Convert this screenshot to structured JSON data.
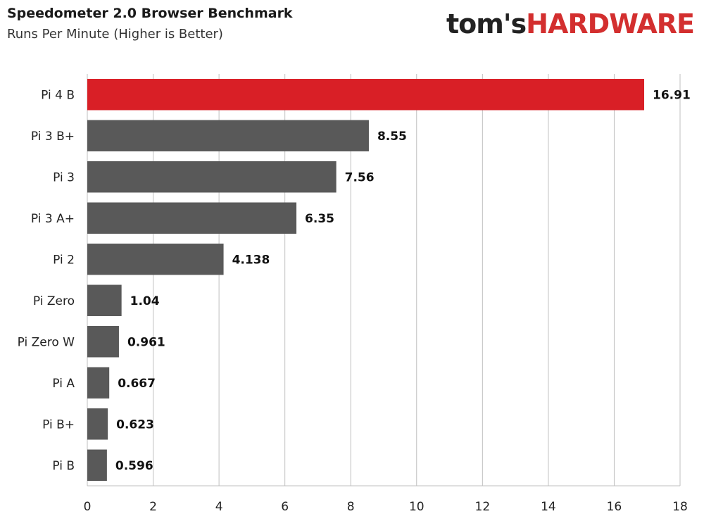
{
  "header": {
    "title": "Speedometer 2.0 Browser Benchmark",
    "subtitle": "Runs Per Minute  (Higher is Better)",
    "logo_text_1": "tom's",
    "logo_text_2": "HARDWARE"
  },
  "colors": {
    "highlight": "#d91f26",
    "bar": "#595959",
    "grid": "#bfbfbf",
    "logo_accent": "#d32f2f"
  },
  "chart_data": {
    "type": "bar",
    "orientation": "horizontal",
    "title": "Speedometer 2.0 Browser Benchmark",
    "subtitle": "Runs Per Minute  (Higher is Better)",
    "categories": [
      "Pi 4 B",
      "Pi 3 B+",
      "Pi 3",
      "Pi 3 A+",
      "Pi 2",
      "Pi Zero",
      "Pi Zero W",
      "Pi A",
      "Pi B+",
      "Pi B"
    ],
    "values": [
      16.91,
      8.55,
      7.56,
      6.35,
      4.138,
      1.04,
      0.961,
      0.667,
      0.623,
      0.596
    ],
    "value_labels": [
      "16.91",
      "8.55",
      "7.56",
      "6.35",
      "4.138",
      "1.04",
      "0.961",
      "0.667",
      "0.623",
      "0.596"
    ],
    "highlight_index": 0,
    "xlim": [
      0,
      18
    ],
    "xticks": [
      0,
      2,
      4,
      6,
      8,
      10,
      12,
      14,
      16,
      18
    ],
    "grid": "vertical",
    "legend": "none"
  }
}
